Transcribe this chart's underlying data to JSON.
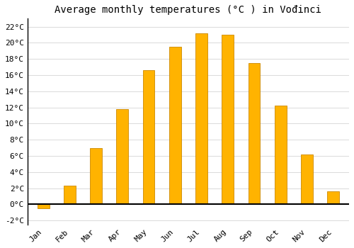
{
  "title": "Average monthly temperatures (°C ) in Vođinci",
  "months": [
    "Jan",
    "Feb",
    "Mar",
    "Apr",
    "May",
    "Jun",
    "Jul",
    "Aug",
    "Sep",
    "Oct",
    "Nov",
    "Dec"
  ],
  "temperatures": [
    -0.5,
    2.3,
    7.0,
    11.8,
    16.6,
    19.5,
    21.2,
    21.0,
    17.5,
    12.2,
    6.2,
    1.6
  ],
  "bar_color": "#FFB300",
  "bar_edge_color": "#CC8800",
  "background_color": "#ffffff",
  "grid_color": "#cccccc",
  "ylim": [
    -2.5,
    23
  ],
  "yticks": [
    -2,
    0,
    2,
    4,
    6,
    8,
    10,
    12,
    14,
    16,
    18,
    20,
    22
  ],
  "title_fontsize": 10,
  "tick_fontsize": 8,
  "bar_width": 0.45
}
